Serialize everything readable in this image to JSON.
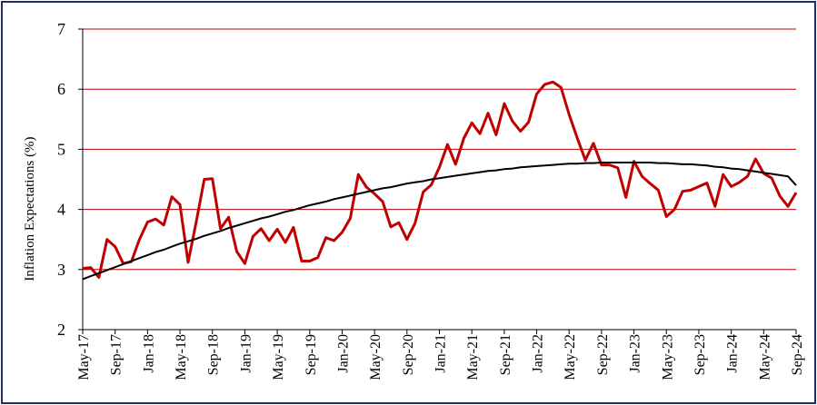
{
  "chart_data": {
    "type": "line",
    "title": "",
    "xlabel": "",
    "ylabel": "Inflation  Expectations (%)",
    "ylim": [
      2,
      7
    ],
    "yticks": [
      2,
      3,
      4,
      5,
      6,
      7
    ],
    "grid": "horizontal",
    "x_start": "May-17",
    "x_tick_labels": [
      "May-17",
      "Sep-17",
      "Jan-18",
      "May-18",
      "Sep-18",
      "Jan-19",
      "May-19",
      "Sep-19",
      "Jan-20",
      "May-20",
      "Sep-20",
      "Jan-21",
      "May-21",
      "Sep-21",
      "Jan-22",
      "May-22",
      "Sep-22",
      "Jan-23",
      "May-23",
      "Sep-23",
      "Jan-24",
      "May-24",
      "Sep-24"
    ],
    "series": [
      {
        "name": "",
        "color": "#c00000",
        "values": [
          3.02,
          3.03,
          2.87,
          3.5,
          3.38,
          3.1,
          3.13,
          3.5,
          3.79,
          3.84,
          3.74,
          4.21,
          4.08,
          3.12,
          3.79,
          4.5,
          4.51,
          3.68,
          3.87,
          3.3,
          3.1,
          3.55,
          3.68,
          3.48,
          3.67,
          3.45,
          3.7,
          3.14,
          3.14,
          3.2,
          3.53,
          3.48,
          3.62,
          3.85,
          4.58,
          4.37,
          4.26,
          4.13,
          3.71,
          3.78,
          3.5,
          3.77,
          4.29,
          4.41,
          4.7,
          5.08,
          4.75,
          5.18,
          5.44,
          5.26,
          5.6,
          5.24,
          5.76,
          5.47,
          5.3,
          5.45,
          5.92,
          6.08,
          6.12,
          6.03,
          5.58,
          5.19,
          4.82,
          5.1,
          4.74,
          4.74,
          4.69,
          4.2,
          4.8,
          4.55,
          4.43,
          4.32,
          3.88,
          4.0,
          4.3,
          4.32,
          4.38,
          4.44,
          4.05,
          4.58,
          4.38,
          4.45,
          4.55,
          4.84,
          4.6,
          4.52,
          4.22,
          4.05,
          4.28
        ]
      },
      {
        "name": "",
        "color": "#000000",
        "values": [
          2.84,
          2.89,
          2.94,
          2.99,
          3.04,
          3.09,
          3.14,
          3.19,
          3.24,
          3.29,
          3.33,
          3.38,
          3.43,
          3.47,
          3.51,
          3.56,
          3.6,
          3.64,
          3.69,
          3.73,
          3.77,
          3.81,
          3.85,
          3.88,
          3.92,
          3.96,
          3.99,
          4.03,
          4.07,
          4.1,
          4.13,
          4.17,
          4.2,
          4.23,
          4.26,
          4.29,
          4.32,
          4.35,
          4.37,
          4.4,
          4.43,
          4.45,
          4.47,
          4.5,
          4.52,
          4.54,
          4.56,
          4.58,
          4.6,
          4.62,
          4.64,
          4.65,
          4.67,
          4.68,
          4.7,
          4.71,
          4.72,
          4.73,
          4.74,
          4.75,
          4.76,
          4.76,
          4.77,
          4.77,
          4.78,
          4.78,
          4.78,
          4.78,
          4.78,
          4.78,
          4.78,
          4.77,
          4.77,
          4.76,
          4.75,
          4.75,
          4.74,
          4.73,
          4.71,
          4.7,
          4.68,
          4.67,
          4.65,
          4.63,
          4.61,
          4.59,
          4.57,
          4.55,
          4.4
        ]
      }
    ]
  }
}
